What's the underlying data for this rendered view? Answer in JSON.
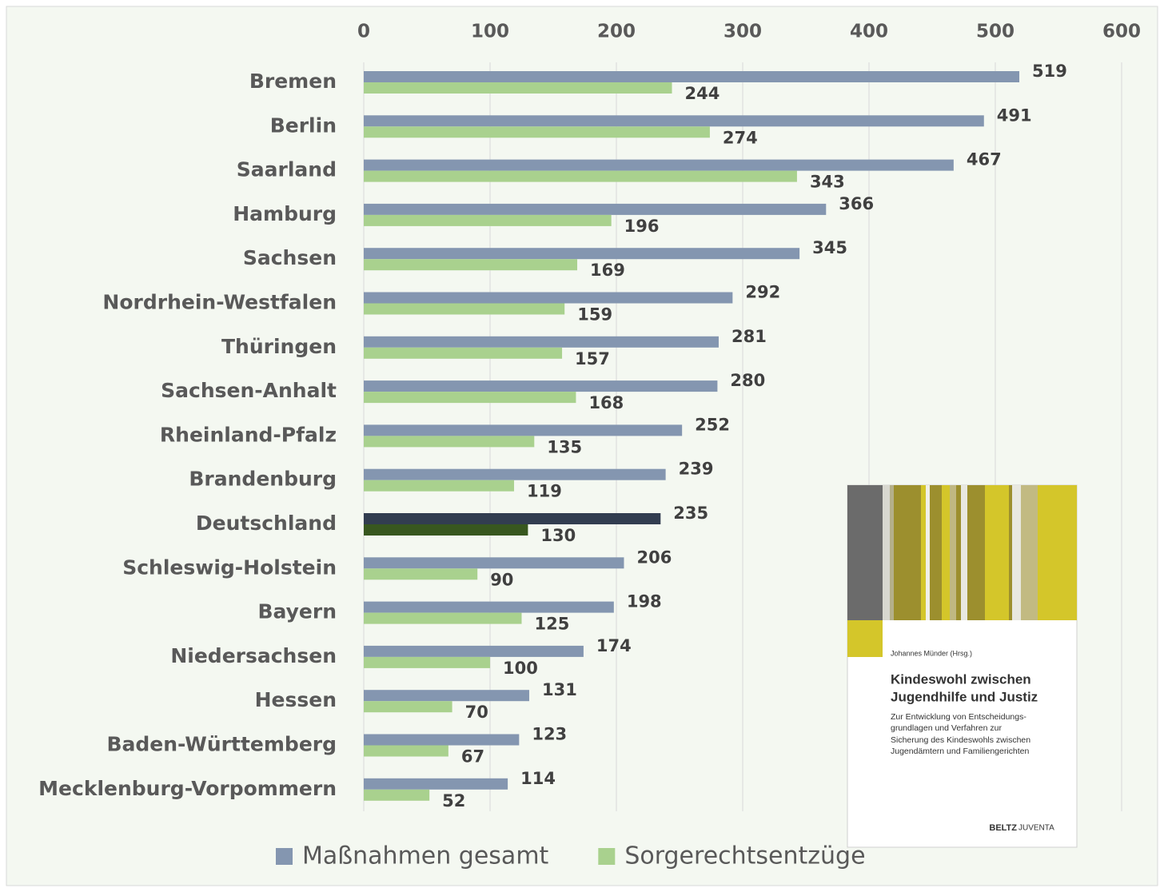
{
  "chart_data": {
    "type": "hbar",
    "categories": [
      "Bremen",
      "Berlin",
      "Saarland",
      "Hamburg",
      "Sachsen",
      "Nordrhein-Westfalen",
      "Thüringen",
      "Sachsen-Anhalt",
      "Rheinland-Pfalz",
      "Brandenburg",
      "Deutschland",
      "Schleswig-Holstein",
      "Bayern",
      "Niedersachsen",
      "Hessen",
      "Baden-Württemberg",
      "Mecklenburg-Vorpommern"
    ],
    "series": [
      {
        "name": "Maßnahmen gesamt",
        "color": "#8496b0",
        "highlight_color": "#323d50",
        "values": [
          519,
          491,
          467,
          366,
          345,
          292,
          281,
          280,
          252,
          239,
          235,
          206,
          198,
          174,
          131,
          123,
          114
        ]
      },
      {
        "name": "Sorgerechtsentzüge",
        "color": "#a9d18e",
        "highlight_color": "#38571f",
        "values": [
          244,
          274,
          343,
          196,
          169,
          159,
          157,
          168,
          135,
          119,
          130,
          90,
          125,
          100,
          70,
          67,
          52
        ]
      }
    ],
    "highlight": "Deutschland",
    "xlim": [
      0,
      600
    ],
    "xticks": [
      0,
      100,
      200,
      300,
      400,
      500,
      600
    ],
    "grid": true,
    "legend": "bottom",
    "inset": {
      "author": "Johannes Münder (Hrsg.)",
      "title": [
        "Kindeswohl zwischen",
        "Jugendhilfe und Justiz"
      ],
      "subtitle": [
        "Zur Entwicklung von Entscheidungs-",
        "grundlagen und Verfahren zur",
        "Sicherung des Kindeswohls zwischen",
        "Jugendämtern und Familiengerichten"
      ],
      "publisher": [
        "BELTZ",
        "JUVENTA"
      ]
    }
  }
}
